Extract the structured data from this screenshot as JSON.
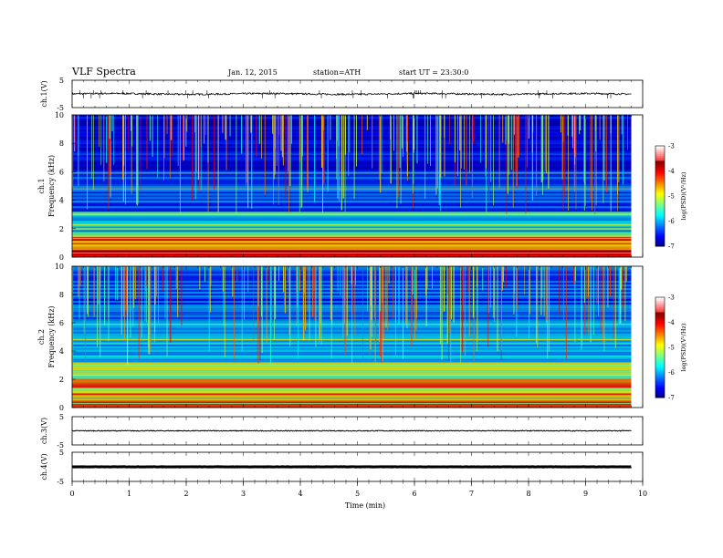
{
  "header": {
    "title": "VLF Spectra",
    "date": "Jan. 12, 2015",
    "station": "station=ATH",
    "start": "start UT =  23:30:0"
  },
  "chart_data": [
    {
      "type": "line",
      "ylabel": "ch.1(V)",
      "ylim": [
        -5,
        5
      ],
      "yticks": [
        "5",
        "-5"
      ],
      "level": 0,
      "amplitude": 0.3
    },
    {
      "type": "heatmap",
      "ylabel_lines": [
        "ch.1",
        "Frequency (kHz)"
      ],
      "ylim": [
        0,
        10
      ],
      "yticks": [
        "0",
        "2",
        "4",
        "6",
        "8",
        "10"
      ],
      "colorbar": {
        "label": "log(PSD)(V²/Hz)",
        "ticks": [
          "-3",
          "-4",
          "-5",
          "-6",
          "-7"
        ],
        "range": [
          -7,
          -3
        ]
      }
    },
    {
      "type": "heatmap",
      "ylabel_lines": [
        "ch.2",
        "Frequency (kHz)"
      ],
      "ylim": [
        0,
        10
      ],
      "yticks": [
        "0",
        "2",
        "4",
        "6",
        "8",
        "10"
      ],
      "colorbar": {
        "label": "log(PSD)(V²/Hz)",
        "ticks": [
          "-3",
          "-4",
          "-5",
          "-6",
          "-7"
        ],
        "range": [
          -7,
          -3
        ]
      }
    },
    {
      "type": "line",
      "ylabel": "ch.3(V)",
      "ylim": [
        -5,
        5
      ],
      "yticks": [
        "5",
        "-5"
      ],
      "level": 0,
      "amplitude": 0.15
    },
    {
      "type": "line",
      "ylabel": "ch.4(V)",
      "ylim": [
        -5,
        5
      ],
      "yticks": [
        "5",
        "-5"
      ],
      "level": 0,
      "amplitude": 0.05
    }
  ],
  "xaxis": {
    "label": "Time (min)",
    "xlim": [
      0,
      10
    ],
    "ticks": [
      "0",
      "1",
      "2",
      "3",
      "4",
      "5",
      "6",
      "7",
      "8",
      "9",
      "10"
    ],
    "data_end": 9.8
  }
}
